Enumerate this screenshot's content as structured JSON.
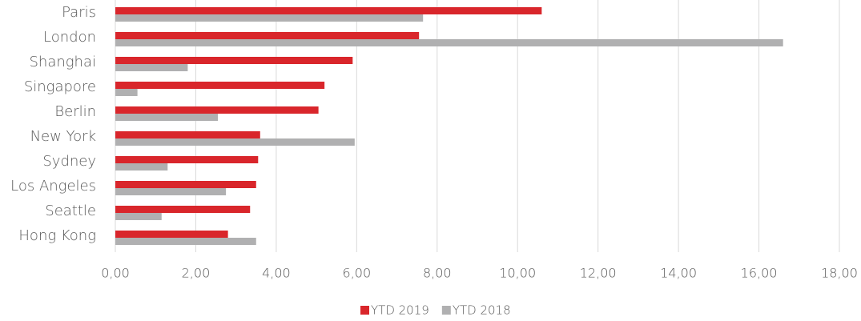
{
  "chart_data": {
    "type": "hbar",
    "categories": [
      "Paris",
      "London",
      "Shanghai",
      "Singapore",
      "Berlin",
      "New York",
      "Sydney",
      "Los Angeles",
      "Seattle",
      "Hong Kong"
    ],
    "series": [
      {
        "name": "YTD 2019",
        "color": "#d9262b",
        "values": [
          10.6,
          7.55,
          5.9,
          5.2,
          5.05,
          3.6,
          3.55,
          3.5,
          3.35,
          2.8
        ]
      },
      {
        "name": "YTD 2018",
        "color": "#b0b0b1",
        "values": [
          7.65,
          16.6,
          1.8,
          0.55,
          2.55,
          5.95,
          1.3,
          2.75,
          1.15,
          3.5
        ]
      }
    ],
    "xlim": [
      0,
      18
    ],
    "xticks": [
      {
        "value": 0,
        "label": "0,00"
      },
      {
        "value": 2,
        "label": "2,00"
      },
      {
        "value": 4,
        "label": "4,00"
      },
      {
        "value": 6,
        "label": "6,00"
      },
      {
        "value": 8,
        "label": "8,00"
      },
      {
        "value": 10,
        "label": "10,00"
      },
      {
        "value": 12,
        "label": "12,00"
      },
      {
        "value": 14,
        "label": "14,00"
      },
      {
        "value": 16,
        "label": "16,00"
      },
      {
        "value": 18,
        "label": "18,00"
      }
    ],
    "grid": true,
    "legend": "bottom"
  }
}
